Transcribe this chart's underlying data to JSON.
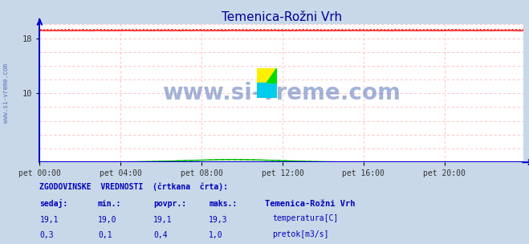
{
  "title": "Temenica-Rožni Vrh",
  "title_color": "#000099",
  "bg_color": "#c8d8e8",
  "plot_bg_color": "#ffffff",
  "fig_bg_color": "#c8d8e8",
  "xlabel_ticks": [
    "pet 00:00",
    "pet 04:00",
    "pet 08:00",
    "pet 12:00",
    "pet 16:00",
    "pet 20:00"
  ],
  "ymin": 0,
  "ymax": 20,
  "xmin": 0,
  "xmax": 287,
  "temp_color": "#ff0000",
  "flow_color": "#00bb00",
  "axis_color": "#0000cc",
  "grid_color": "#ffbbbb",
  "watermark": "www.si-vreme.com",
  "watermark_color": "#3355aa",
  "station_name": "Temenica-Rožni Vrh",
  "label1": "ZGODOVINSKE  VREDNOSTI  (črtkana  črta):",
  "col_sedaj": "sedaj:",
  "col_min": "min.:",
  "col_povpr": "povpr.:",
  "col_maks": "maks.:",
  "text_color": "#0000bb",
  "label_temp": "temperatura[C]",
  "label_flow": "pretok[m3/s]",
  "sidebar_text": "www.si-vreme.com",
  "vals_temp": [
    "19,1",
    "19,0",
    "19,1",
    "19,3"
  ],
  "vals_flow": [
    "0,3",
    "0,1",
    "0,4",
    "1,0"
  ]
}
